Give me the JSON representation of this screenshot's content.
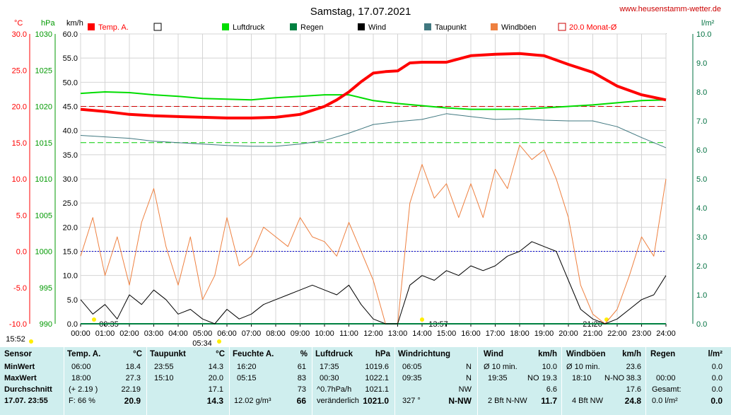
{
  "title": "Samstag, 17.07.2021",
  "website": "www.heusenstamm-wetter.de",
  "colors": {
    "temp": "#ff0000",
    "pressure": "#00dd00",
    "rain": "#008040",
    "wind": "#000000",
    "dewpoint": "#407880",
    "gust": "#ee8040",
    "month_avg": "#cc0000",
    "zero_line": "#0000cc",
    "table_bg": "#cfeeee"
  },
  "chart_data": {
    "type": "line",
    "title": "Samstag, 17.07.2021",
    "axes": {
      "temp": {
        "unit": "°C",
        "range": [
          -10,
          30
        ],
        "ticks": [
          "30.0",
          "25.0",
          "20.0",
          "15.0",
          "10.0",
          "5.0",
          "0.0",
          "-5.0",
          "-10.0"
        ]
      },
      "pressure": {
        "unit": "hPa",
        "range": [
          990,
          1030
        ],
        "ticks": [
          "1030",
          "1025",
          "1020",
          "1015",
          "1010",
          "1005",
          "1000",
          "995",
          "990"
        ]
      },
      "wind": {
        "unit": "km/h",
        "range": [
          0,
          60
        ],
        "ticks": [
          "60.0",
          "55.0",
          "50.0",
          "45.0",
          "40.0",
          "35.0",
          "30.0",
          "25.0",
          "20.0",
          "15.0",
          "10.0",
          "5.0",
          "0.0"
        ]
      },
      "rain": {
        "unit": "l/m²",
        "range": [
          0,
          10
        ],
        "ticks": [
          "10.0",
          "9.0",
          "8.0",
          "7.0",
          "6.0",
          "5.0",
          "4.0",
          "3.0",
          "2.0",
          "1.0",
          "0.0"
        ]
      },
      "time_ticks": [
        "00:00",
        "01:00",
        "02:00",
        "03:00",
        "04:00",
        "05:00",
        "06:00",
        "07:00",
        "08:00",
        "09:00",
        "10:00",
        "11:00",
        "12:00",
        "13:00",
        "14:00",
        "15:00",
        "16:00",
        "17:00",
        "18:00",
        "19:00",
        "20:00",
        "21:00",
        "22:00",
        "23:00",
        "24:00"
      ]
    },
    "legend": [
      "Temp. A.",
      "",
      "Luftdruck",
      "Regen",
      "Wind",
      "Taupunkt",
      "Windböen",
      "20.0 Monat-Ø"
    ],
    "month_avg_temp": 20.0,
    "pressure_ref": 1015,
    "series": [
      {
        "name": "Temp. A.",
        "axis": "temp",
        "x": [
          0,
          1,
          2,
          3,
          4,
          5,
          6,
          7,
          8,
          9,
          10,
          10.5,
          11,
          11.5,
          12,
          12.5,
          13,
          13.5,
          14,
          15,
          16,
          17,
          18,
          19,
          20,
          21,
          22,
          23,
          24
        ],
        "y": [
          19.6,
          19.3,
          18.9,
          18.7,
          18.6,
          18.5,
          18.4,
          18.4,
          18.5,
          18.9,
          20.0,
          20.9,
          22.0,
          23.4,
          24.6,
          24.8,
          24.9,
          26.0,
          26.1,
          26.1,
          27.0,
          27.2,
          27.3,
          27.0,
          25.8,
          24.7,
          22.8,
          21.6,
          20.9
        ]
      },
      {
        "name": "Luftdruck",
        "axis": "pressure",
        "x": [
          0,
          1,
          2,
          3,
          4,
          5,
          6,
          7,
          8,
          9,
          10,
          11,
          12,
          13,
          14,
          15,
          16,
          17,
          18,
          19,
          20,
          21,
          22,
          23,
          24
        ],
        "y": [
          1021.8,
          1022.0,
          1021.9,
          1021.6,
          1021.4,
          1021.1,
          1021.0,
          1020.9,
          1021.2,
          1021.4,
          1021.6,
          1021.6,
          1020.8,
          1020.4,
          1020.1,
          1019.8,
          1019.6,
          1019.6,
          1019.6,
          1019.8,
          1020.0,
          1020.2,
          1020.5,
          1020.8,
          1020.9
        ]
      },
      {
        "name": "Taupunkt",
        "axis": "temp",
        "x": [
          0,
          1,
          2,
          3,
          4,
          5,
          6,
          7,
          8,
          9,
          10,
          11,
          12,
          13,
          14,
          15,
          16,
          17,
          18,
          19,
          20,
          21,
          22,
          23,
          24
        ],
        "y": [
          16.0,
          15.8,
          15.6,
          15.2,
          15.0,
          14.8,
          14.6,
          14.5,
          14.5,
          14.8,
          15.3,
          16.3,
          17.5,
          17.9,
          18.2,
          19.0,
          18.6,
          18.2,
          18.3,
          18.1,
          18.0,
          18.0,
          17.2,
          15.7,
          14.3
        ]
      },
      {
        "name": "Wind",
        "axis": "wind",
        "x": [
          0,
          0.5,
          1,
          1.5,
          2,
          2.5,
          3,
          3.5,
          4,
          4.5,
          5,
          5.5,
          6,
          6.5,
          7,
          7.5,
          8,
          8.5,
          9,
          9.5,
          10,
          10.5,
          11,
          11.5,
          12,
          12.5,
          13,
          13.5,
          14,
          14.5,
          15,
          15.5,
          16,
          16.5,
          17,
          17.5,
          18,
          18.5,
          19,
          19.5,
          20,
          20.5,
          21,
          21.5,
          22,
          22.5,
          23,
          23.5,
          24
        ],
        "y": [
          5,
          2,
          4,
          1,
          6,
          4,
          7,
          5,
          2,
          3,
          1,
          0,
          3,
          1,
          2,
          4,
          5,
          6,
          7,
          8,
          7,
          6,
          8,
          4,
          1,
          0,
          0,
          8,
          10,
          9,
          11,
          10,
          12,
          11,
          12,
          14,
          15,
          17,
          16,
          15,
          9,
          3,
          1,
          0,
          1,
          3,
          5,
          6,
          10
        ]
      },
      {
        "name": "Windböen",
        "axis": "wind",
        "x": [
          0,
          0.5,
          1,
          1.5,
          2,
          2.5,
          3,
          3.5,
          4,
          4.5,
          5,
          5.5,
          6,
          6.5,
          7,
          7.5,
          8,
          8.5,
          9,
          9.5,
          10,
          10.5,
          11,
          11.5,
          12,
          12.5,
          13,
          13.5,
          14,
          14.5,
          15,
          15.5,
          16,
          16.5,
          17,
          17.5,
          18,
          18.5,
          19,
          19.5,
          20,
          20.5,
          21,
          21.5,
          22,
          22.5,
          23,
          23.5,
          24
        ],
        "y": [
          14,
          22,
          10,
          18,
          8,
          21,
          28,
          16,
          8,
          18,
          5,
          10,
          22,
          12,
          14,
          20,
          18,
          16,
          22,
          18,
          17,
          14,
          21,
          15,
          9,
          0,
          0,
          25,
          33,
          26,
          29,
          22,
          29,
          22,
          32,
          28,
          37,
          34,
          36,
          30,
          22,
          8,
          2,
          0,
          3,
          10,
          18,
          14,
          30
        ]
      },
      {
        "name": "Regen",
        "axis": "rain",
        "x": [
          0,
          24
        ],
        "y": [
          0,
          0
        ]
      }
    ],
    "annotations": [
      "15:52",
      "00:35",
      "05:34",
      "13:57",
      "21:26"
    ]
  },
  "table": {
    "rows": [
      "Sensor",
      "MinWert",
      "MaxWert",
      "Durchschnitt",
      "17.07. 23:55"
    ],
    "temp": {
      "header": "Temp. A.",
      "unit": "°C",
      "min_time": "06:00",
      "min": "18.4",
      "max_time": "18:00",
      "max": "27.3",
      "avg_note": "(+ 2.19 )",
      "avg": "22.19",
      "cur_note": "F: 66 %",
      "cur": "20.9"
    },
    "dew": {
      "header": "Taupunkt",
      "unit": "°C",
      "min_time": "23:55",
      "min": "14.3",
      "max_time": "15:10",
      "max": "20.0",
      "avg": "17.1",
      "cur": "14.3"
    },
    "hum": {
      "header": "Feuchte A.",
      "unit": "%",
      "min_time": "16:20",
      "min": "61",
      "max_time": "05:15",
      "max": "83",
      "avg": "73",
      "cur_note": "12.02 g/m³",
      "cur": "66"
    },
    "press": {
      "header": "Luftdruck",
      "unit": "hPa",
      "min_time": "17:35",
      "min": "1019.6",
      "max_time": "00:30",
      "max": "1022.1",
      "avg_note": "^0.7hPa/h",
      "avg": "1021.1",
      "cur_note": "veränderlich",
      "cur": "1021.0"
    },
    "dir": {
      "header": "Windrichtung",
      "min_time": "06:05",
      "min": "N",
      "max_time": "09:35",
      "max": "N",
      "avg": "NW",
      "cur_note": "327 °",
      "cur": "N-NW"
    },
    "wind": {
      "header": "Wind",
      "unit": "km/h",
      "min_time": "Ø 10 min.",
      "min": "10.0",
      "max_time": "19:35",
      "max_dir": "NO",
      "max": "19.3",
      "avg": "6.6",
      "cur_note": "2 Bft N-NW",
      "cur": "11.7"
    },
    "gust": {
      "header": "Windböen",
      "unit": "km/h",
      "min_time": "Ø 10 min.",
      "min": "23.6",
      "max_time": "18:10",
      "max_dir": "N-NO",
      "max": "38.3",
      "avg": "17.6",
      "cur_note": "4 Bft NW",
      "cur": "24.8"
    },
    "rain": {
      "header": "Regen",
      "unit": "l/m²",
      "min_time": "00:00",
      "min": "0.0",
      "max_time": "Gesamt:",
      "max": "0.0",
      "avg": "0.0",
      "cur_note": "0.0 l/m²",
      "cur": "0.0"
    }
  }
}
